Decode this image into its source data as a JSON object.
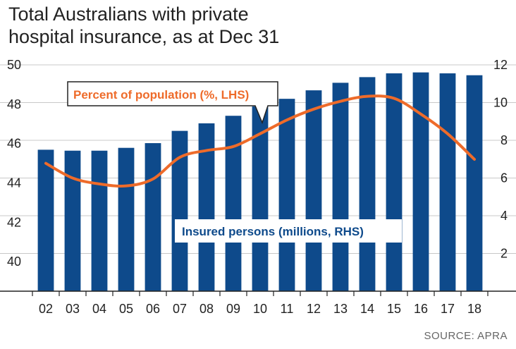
{
  "chart_data": {
    "type": "bar",
    "title_lines": [
      "Total Australians with private",
      "hospital insurance, as at Dec 31"
    ],
    "categories": [
      "02",
      "03",
      "04",
      "05",
      "06",
      "07",
      "08",
      "09",
      "10",
      "11",
      "12",
      "13",
      "14",
      "15",
      "16",
      "17",
      "18"
    ],
    "left_ticks": [
      "50",
      "48",
      "46",
      "44",
      "42",
      "40"
    ],
    "right_ticks": [
      "12",
      "10",
      "8",
      "6",
      "4",
      "2"
    ],
    "left_axis_range": [
      38.5,
      50
    ],
    "right_axis_range": [
      0,
      12
    ],
    "series": [
      {
        "name": "Insured persons (millions, RHS)",
        "type": "bar",
        "axis": "right",
        "color": "#0e4a8b",
        "values": [
          7.5,
          7.45,
          7.45,
          7.6,
          7.85,
          8.5,
          8.9,
          9.3,
          9.8,
          10.2,
          10.65,
          11.05,
          11.35,
          11.55,
          11.6,
          11.55,
          11.45
        ]
      },
      {
        "name": "Percent of population (%, LHS)",
        "type": "line",
        "axis": "left",
        "color": "#ee6b2a",
        "values": [
          45.0,
          44.25,
          43.95,
          43.85,
          44.2,
          45.3,
          45.65,
          45.85,
          46.5,
          47.2,
          47.75,
          48.15,
          48.4,
          48.3,
          47.5,
          46.5,
          45.2
        ]
      }
    ],
    "callouts": {
      "percent": "Percent of population (%, LHS)",
      "insured": "Insured persons (millions, RHS)"
    },
    "source": "SOURCE: APRA"
  }
}
